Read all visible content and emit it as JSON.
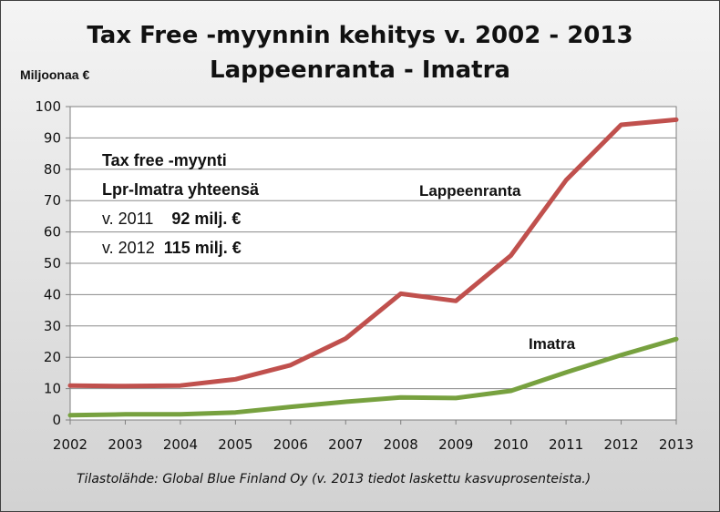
{
  "chart_data": {
    "type": "line",
    "title_line1": "Tax Free -myynnin kehitys v. 2002 - 2013",
    "title_line2": "Lappeenranta - Imatra",
    "ylabel": "Miljoonaa €",
    "ylim": [
      0,
      100
    ],
    "yticks": [
      0,
      10,
      20,
      30,
      40,
      50,
      60,
      70,
      80,
      90,
      100
    ],
    "x": [
      "2002",
      "2003",
      "2004",
      "2005",
      "2006",
      "2007",
      "2008",
      "2009",
      "2010",
      "2011",
      "2012",
      "2013"
    ],
    "grid": true,
    "series": [
      {
        "name": "Lappeenranta",
        "color": "#c0504d",
        "values": [
          11,
          10.8,
          11,
          13,
          17.5,
          26,
          40.3,
          38,
          52.5,
          76.5,
          94.2,
          95.8
        ]
      },
      {
        "name": "Imatra",
        "color": "#77a13f",
        "values": [
          1.5,
          1.8,
          1.8,
          2.4,
          4.2,
          5.8,
          7.2,
          7,
          9.3,
          15.2,
          20.7,
          25.8
        ]
      }
    ],
    "annotation": {
      "line1": "Tax free -myynti",
      "line2": "Lpr-Imatra yhteensä",
      "line3_prefix": "v. 2011",
      "line3_value": "92 milj. €",
      "line4_prefix": "v. 2012",
      "line4_value": "115 milj. €"
    },
    "source": "Tilastolähde: Global Blue Finland Oy (v.  2013 tiedot laskettu kasvuprosenteista.)"
  }
}
